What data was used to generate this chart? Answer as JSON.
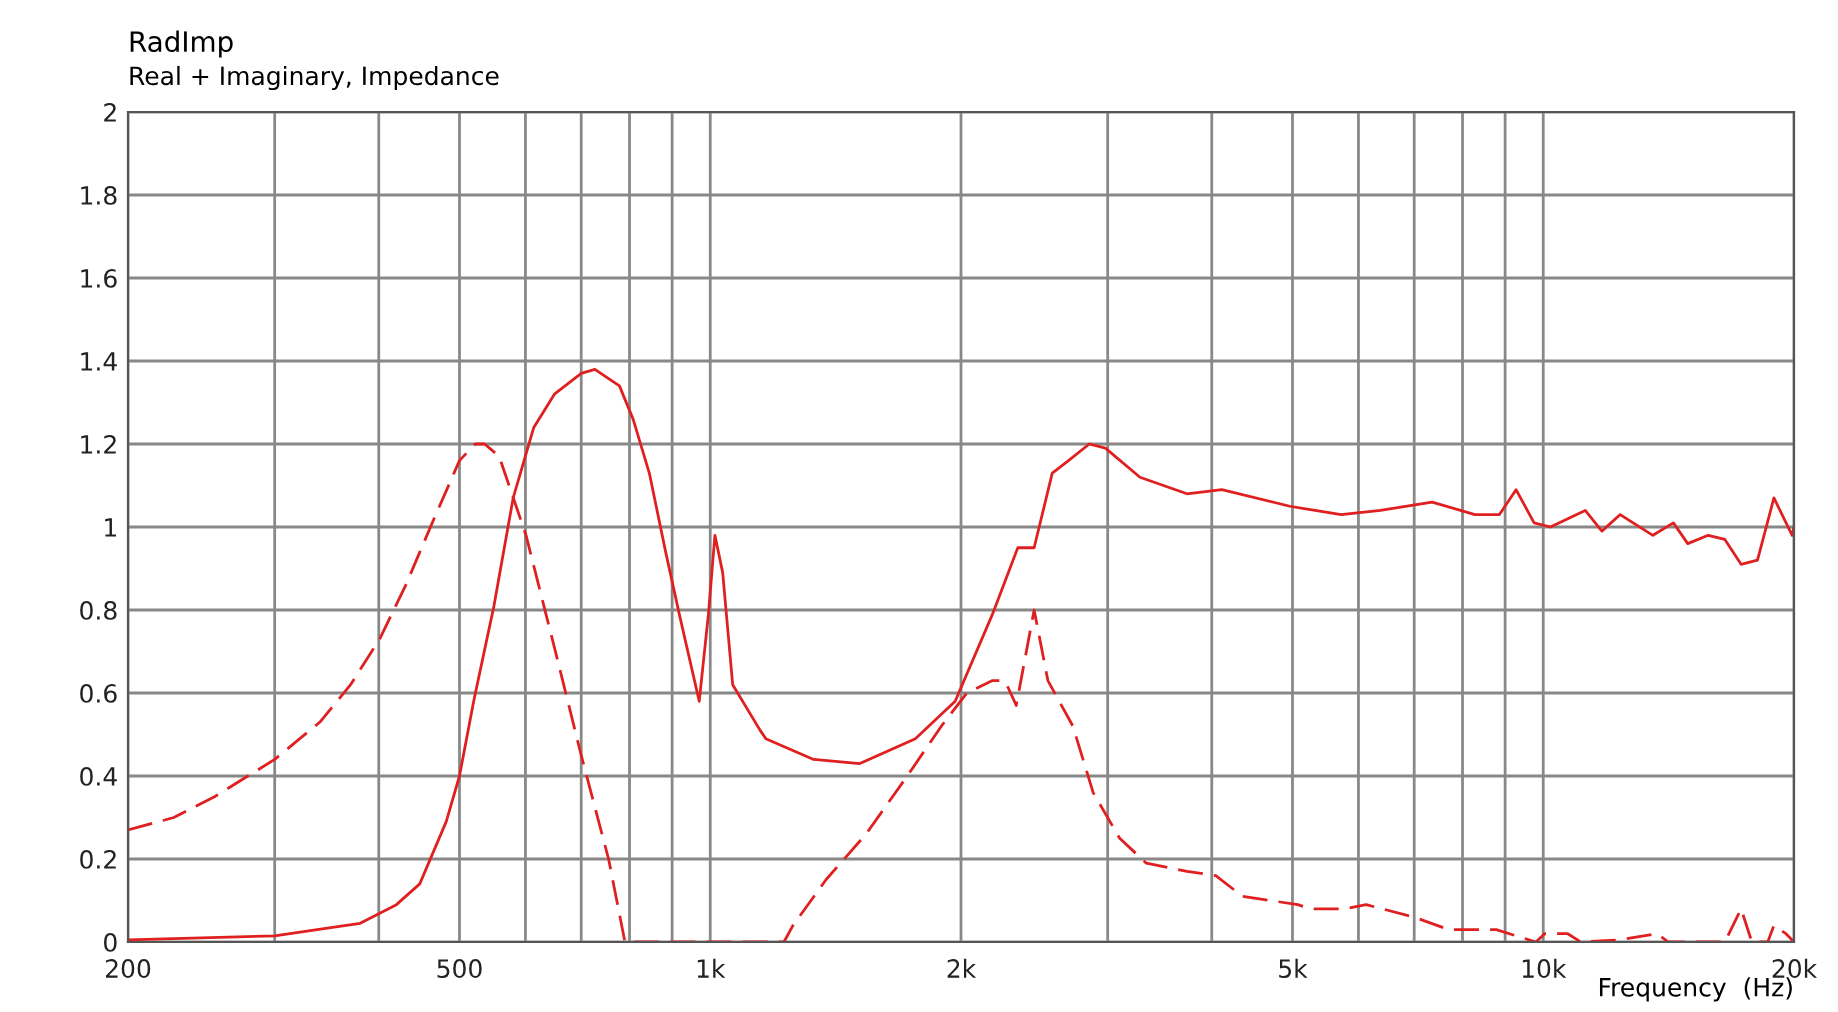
{
  "chart_data": {
    "type": "line",
    "title": "RadImp",
    "subtitle": "Real + Imaginary, Impedance",
    "xlabel": "Frequency  (Hz)",
    "log": "x",
    "grid": true,
    "marker": "none",
    "xlim": [
      200,
      20000
    ],
    "ylim": [
      0,
      2
    ],
    "xticks": [
      200,
      {
        "value": 300,
        "label": null
      },
      {
        "value": 400,
        "label": null
      },
      500,
      {
        "value": 600,
        "label": null
      },
      {
        "value": 700,
        "label": null
      },
      {
        "value": 800,
        "label": null
      },
      {
        "value": 900,
        "label": null
      },
      {
        "value": 1000,
        "label": "1k"
      },
      {
        "value": 2000,
        "label": "2k"
      },
      {
        "value": 3000,
        "label": null
      },
      {
        "value": 4000,
        "label": null
      },
      {
        "value": 5000,
        "label": "5k"
      },
      {
        "value": 6000,
        "label": null
      },
      {
        "value": 7000,
        "label": null
      },
      {
        "value": 8000,
        "label": null
      },
      {
        "value": 9000,
        "label": null
      },
      {
        "value": 10000,
        "label": "10k"
      },
      {
        "value": 20000,
        "label": "20k"
      }
    ],
    "yticks": [
      0,
      0.2,
      0.4,
      0.6,
      0.8,
      1,
      1.2,
      1.4,
      1.6,
      1.8,
      2
    ],
    "series": [
      {
        "color": "#e02020",
        "line_style": "solid",
        "x": [
          200,
          300,
          352,
          380,
          420,
          448,
          482,
          500,
          520,
          550,
          580,
          614,
          650,
          700,
          727,
          778,
          808,
          845,
          884,
          918,
          970,
          995,
          1013,
          1035,
          1064,
          1148,
          1166,
          1331,
          1512,
          1763,
          1968,
          2182,
          2340,
          2448,
          2574,
          2692,
          2851,
          2981,
          3280,
          3735,
          4113,
          4963,
          5720,
          6375,
          7354,
          8279,
          8860,
          9276,
          9750,
          10200,
          11230,
          11760,
          12370,
          13540,
          14330,
          14910,
          15780,
          16520,
          17280,
          18080,
          18920,
          19900,
          20000
        ],
        "values": [
          0.005,
          0.015,
          0.035,
          0.045,
          0.09,
          0.14,
          0.29,
          0.4,
          0.58,
          0.81,
          1.07,
          1.24,
          1.32,
          1.37,
          1.38,
          1.34,
          1.26,
          1.13,
          0.94,
          0.79,
          0.58,
          0.79,
          0.98,
          0.89,
          0.62,
          0.51,
          0.49,
          0.44,
          0.43,
          0.49,
          0.58,
          0.79,
          0.95,
          0.95,
          1.13,
          1.16,
          1.2,
          1.19,
          1.12,
          1.08,
          1.09,
          1.05,
          1.03,
          1.04,
          1.06,
          1.03,
          1.03,
          1.09,
          1.01,
          1.0,
          1.04,
          0.99,
          1.03,
          0.98,
          1.01,
          0.96,
          0.98,
          0.97,
          0.91,
          0.92,
          1.07,
          0.98,
          1.0
        ]
      },
      {
        "color": "#e02020",
        "line_style": "dashed",
        "x": [
          200,
          227,
          254,
          300,
          340,
          370,
          401,
          431,
          466,
          500,
          522,
          536,
          558,
          601,
          650,
          700,
          755,
          790,
          1226,
          1257,
          1377,
          1538,
          1724,
          1894,
          2033,
          2182,
          2248,
          2270,
          2330,
          2448,
          2543,
          2725,
          2882,
          3101,
          3338,
          3735,
          4045,
          4353,
          5075,
          5250,
          5780,
          6130,
          6995,
          7700,
          8780,
          9800,
          10040,
          10700,
          11100,
          12300,
          13700,
          14130,
          16520,
          17280,
          17800,
          18600,
          18920,
          19560,
          20000
        ],
        "values": [
          0.27,
          0.3,
          0.35,
          0.44,
          0.53,
          0.62,
          0.73,
          0.86,
          1.02,
          1.16,
          1.2,
          1.2,
          1.17,
          0.98,
          0.71,
          0.45,
          0.2,
          0,
          0,
          0.04,
          0.15,
          0.26,
          0.4,
          0.52,
          0.6,
          0.63,
          0.63,
          0.62,
          0.57,
          0.8,
          0.63,
          0.52,
          0.36,
          0.25,
          0.19,
          0.17,
          0.16,
          0.11,
          0.09,
          0.08,
          0.08,
          0.09,
          0.06,
          0.03,
          0.03,
          0,
          0.02,
          0.02,
          0,
          0.005,
          0.02,
          0,
          0,
          0.08,
          0,
          0,
          0.04,
          0.02,
          0
        ]
      }
    ]
  }
}
